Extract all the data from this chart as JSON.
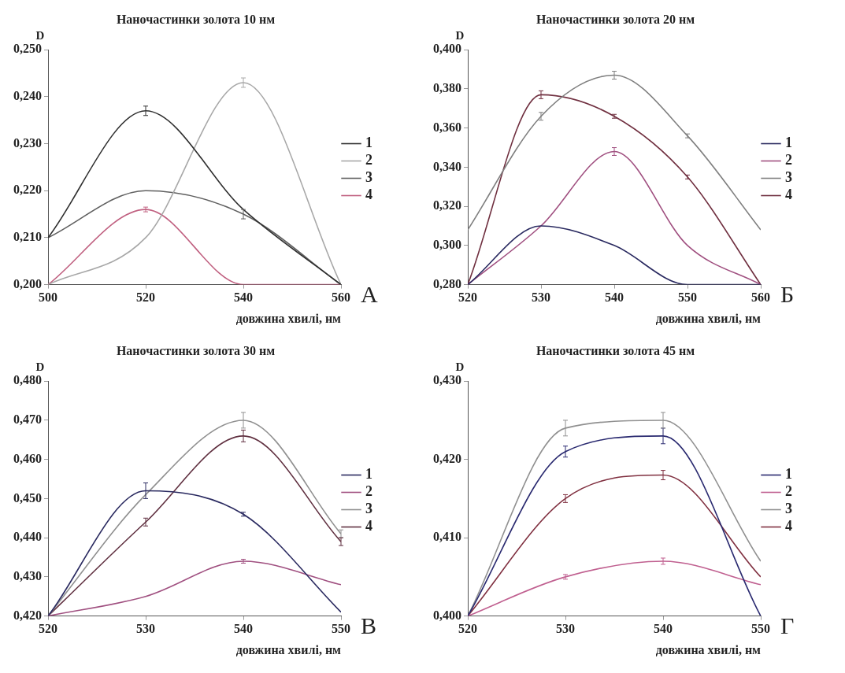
{
  "chart_data": [
    {
      "type": "line",
      "title": "Наночастинки золота 10 нм",
      "xlabel": "довжина хвилі, нм",
      "ylabel": "D",
      "annotations": [
        "А"
      ],
      "x": [
        500,
        520,
        540,
        560
      ],
      "xlim": [
        500,
        560
      ],
      "xticks": [
        500,
        520,
        540,
        560
      ],
      "ylim": [
        0.2,
        0.25
      ],
      "yticks": [
        {
          "value": 0.2,
          "label": "0,200"
        },
        {
          "value": 0.21,
          "label": "0,210"
        },
        {
          "value": 0.22,
          "label": "0,220"
        },
        {
          "value": 0.23,
          "label": "0,230"
        },
        {
          "value": 0.24,
          "label": "0,240"
        },
        {
          "value": 0.25,
          "label": "0,250"
        }
      ],
      "grid": false,
      "legend": "right",
      "line_style": "solid",
      "series": [
        {
          "name": "1",
          "color": "#303030",
          "values": [
            0.21,
            0.237,
            0.216,
            0.2
          ],
          "errors": [
            null,
            0.001,
            null,
            null
          ]
        },
        {
          "name": "2",
          "color": "#a8a8a8",
          "values": [
            0.2,
            0.21,
            0.243,
            0.2
          ],
          "errors": [
            null,
            null,
            0.001,
            null
          ]
        },
        {
          "name": "3",
          "color": "#606060",
          "values": [
            0.21,
            0.22,
            0.215,
            0.2
          ],
          "errors": [
            null,
            null,
            0.001,
            null
          ]
        },
        {
          "name": "4",
          "color": "#c06080",
          "values": [
            0.2,
            0.216,
            0.2,
            0.2
          ],
          "errors": [
            null,
            0.0005,
            null,
            null
          ]
        }
      ]
    },
    {
      "type": "line",
      "title": "Наночастинки золота 20 нм",
      "xlabel": "довжина хвилі, нм",
      "ylabel": "D",
      "annotations": [
        "Б"
      ],
      "x": [
        520,
        530,
        540,
        550,
        560
      ],
      "xlim": [
        520,
        560
      ],
      "xticks": [
        520,
        530,
        540,
        550,
        560
      ],
      "ylim": [
        0.28,
        0.4
      ],
      "yticks": [
        {
          "value": 0.28,
          "label": "0,280"
        },
        {
          "value": 0.3,
          "label": "0,300"
        },
        {
          "value": 0.32,
          "label": "0,320"
        },
        {
          "value": 0.34,
          "label": "0,340"
        },
        {
          "value": 0.36,
          "label": "0,360"
        },
        {
          "value": 0.38,
          "label": "0,380"
        },
        {
          "value": 0.4,
          "label": "0,400"
        }
      ],
      "grid": false,
      "legend": "right",
      "line_style": "solid",
      "series": [
        {
          "name": "1",
          "color": "#2a2a60",
          "values": [
            0.28,
            0.31,
            0.3,
            0.28,
            0.28
          ],
          "errors": [
            null,
            null,
            null,
            null,
            null
          ]
        },
        {
          "name": "2",
          "color": "#a05080",
          "values": [
            0.28,
            0.31,
            0.348,
            0.3,
            0.28
          ],
          "errors": [
            null,
            null,
            0.002,
            null,
            null
          ]
        },
        {
          "name": "3",
          "color": "#808080",
          "values": [
            0.308,
            0.366,
            0.387,
            0.356,
            0.308
          ],
          "errors": [
            null,
            0.002,
            0.002,
            0.001,
            null
          ]
        },
        {
          "name": "4",
          "color": "#703040",
          "values": [
            0.28,
            0.377,
            0.366,
            0.335,
            0.28
          ],
          "errors": [
            null,
            0.002,
            0.001,
            0.001,
            null
          ]
        }
      ]
    },
    {
      "type": "line",
      "title": "Наночастинки золота 30 нм",
      "xlabel": "довжина хвилі, нм",
      "ylabel": "D",
      "annotations": [
        "В"
      ],
      "x": [
        520,
        530,
        540,
        550
      ],
      "xlim": [
        520,
        550
      ],
      "xticks": [
        520,
        530,
        540,
        550
      ],
      "ylim": [
        0.42,
        0.48
      ],
      "yticks": [
        {
          "value": 0.42,
          "label": "0,420"
        },
        {
          "value": 0.43,
          "label": "0,430"
        },
        {
          "value": 0.44,
          "label": "0,440"
        },
        {
          "value": 0.45,
          "label": "0,450"
        },
        {
          "value": 0.46,
          "label": "0,460"
        },
        {
          "value": 0.47,
          "label": "0,470"
        },
        {
          "value": 0.48,
          "label": "0,480"
        }
      ],
      "grid": false,
      "legend": "right",
      "line_style": "solid",
      "series": [
        {
          "name": "1",
          "color": "#2a2a60",
          "values": [
            0.42,
            0.452,
            0.446,
            0.421
          ],
          "errors": [
            null,
            0.002,
            0.0005,
            null
          ]
        },
        {
          "name": "2",
          "color": "#a05080",
          "values": [
            0.42,
            0.425,
            0.434,
            0.428
          ],
          "errors": [
            null,
            null,
            0.0005,
            null
          ]
        },
        {
          "name": "3",
          "color": "#909090",
          "values": [
            0.42,
            0.451,
            0.47,
            0.441
          ],
          "errors": [
            null,
            null,
            0.002,
            0.001
          ]
        },
        {
          "name": "4",
          "color": "#603040",
          "values": [
            0.42,
            0.444,
            0.466,
            0.439
          ],
          "errors": [
            null,
            0.001,
            0.0015,
            0.001
          ]
        }
      ]
    },
    {
      "type": "line",
      "title": "Наночастинки золота 45 нм",
      "xlabel": "довжина хвилі, нм",
      "ylabel": "D",
      "annotations": [
        "Г"
      ],
      "x": [
        520,
        530,
        540,
        550
      ],
      "xlim": [
        520,
        550
      ],
      "xticks": [
        520,
        530,
        540,
        550
      ],
      "ylim": [
        0.4,
        0.43
      ],
      "yticks": [
        {
          "value": 0.4,
          "label": "0,400"
        },
        {
          "value": 0.41,
          "label": "0,410"
        },
        {
          "value": 0.42,
          "label": "0,420"
        },
        {
          "value": 0.43,
          "label": "0,430"
        }
      ],
      "grid": false,
      "legend": "right",
      "line_style": "solid",
      "series": [
        {
          "name": "1",
          "color": "#2a2a70",
          "values": [
            0.4,
            0.421,
            0.423,
            0.4
          ],
          "errors": [
            null,
            0.0007,
            0.001,
            null
          ]
        },
        {
          "name": "2",
          "color": "#c06090",
          "values": [
            0.4,
            0.405,
            0.407,
            0.404
          ],
          "errors": [
            null,
            0.0003,
            0.0004,
            null
          ]
        },
        {
          "name": "3",
          "color": "#909090",
          "values": [
            0.4,
            0.424,
            0.425,
            0.407
          ],
          "errors": [
            null,
            0.001,
            0.001,
            null
          ]
        },
        {
          "name": "4",
          "color": "#803040",
          "values": [
            0.4,
            0.415,
            0.418,
            0.405
          ],
          "errors": [
            null,
            0.0005,
            0.0006,
            null
          ]
        }
      ]
    }
  ]
}
